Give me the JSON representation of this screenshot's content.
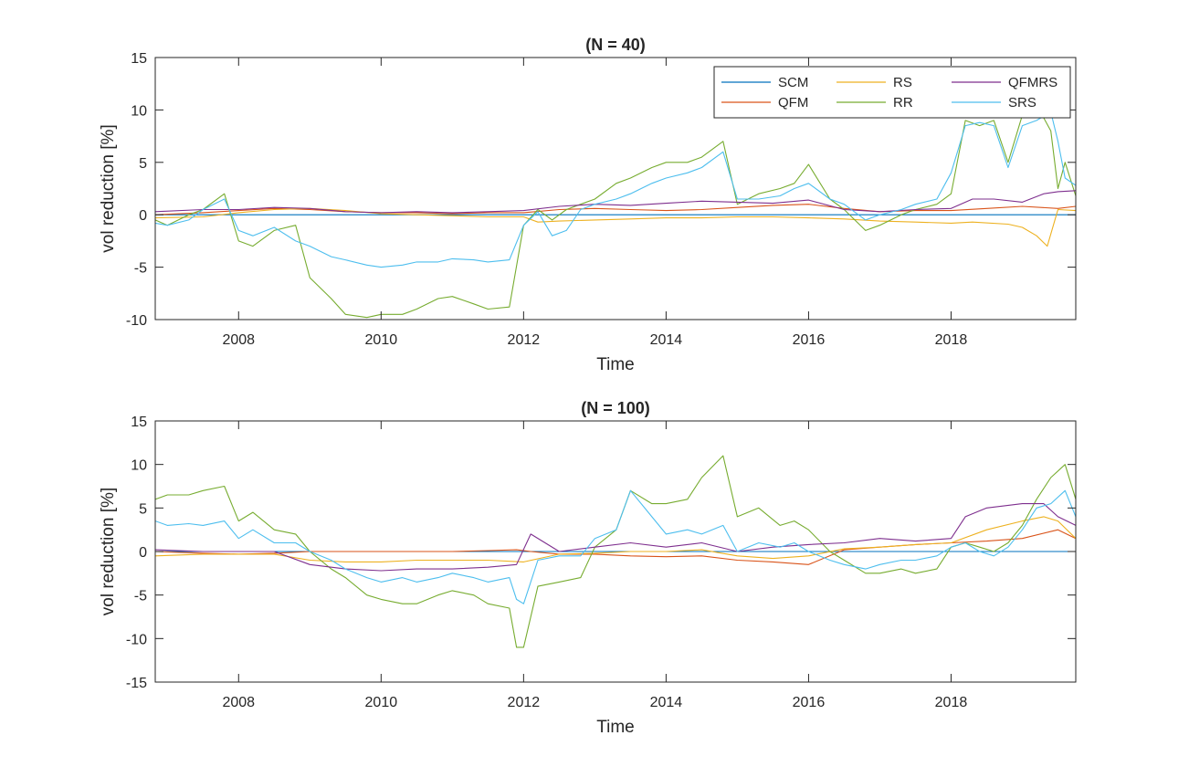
{
  "chart_data": [
    {
      "type": "line",
      "title": "(N = 40)",
      "xlabel": "Time",
      "ylabel": "vol reduction [%]",
      "xlim": [
        2006.83,
        2019.75
      ],
      "ylim": [
        -10,
        15
      ],
      "xticks": [
        2008,
        2010,
        2012,
        2014,
        2016,
        2018
      ],
      "xtick_labels": [
        "2008",
        "2010",
        "2012",
        "2014",
        "2016",
        "2018"
      ],
      "yticks": [
        -10,
        -5,
        0,
        5,
        10,
        15
      ],
      "ytick_labels": [
        "-10",
        "-5",
        "0",
        "5",
        "10",
        "15"
      ],
      "legend": "top-right",
      "grid": false,
      "series": [
        {
          "name": "SCM",
          "color": "#0072BD",
          "x": [
            2006.83,
            2019.75
          ],
          "y": [
            0,
            0
          ]
        },
        {
          "name": "QFM",
          "color": "#D95319",
          "x": [
            2006.83,
            2007.5,
            2008,
            2008.5,
            2009,
            2009.5,
            2010,
            2010.5,
            2011,
            2011.5,
            2012,
            2012.5,
            2013,
            2013.5,
            2014,
            2014.5,
            2015,
            2015.5,
            2016,
            2016.5,
            2017,
            2017.5,
            2018,
            2018.5,
            2019,
            2019.5,
            2019.75
          ],
          "y": [
            0.0,
            0.2,
            0.4,
            0.6,
            0.5,
            0.3,
            0.2,
            0.2,
            0.1,
            0.2,
            0.2,
            0.5,
            0.6,
            0.5,
            0.4,
            0.5,
            0.7,
            0.9,
            1.0,
            0.6,
            0.3,
            0.4,
            0.4,
            0.6,
            0.8,
            0.6,
            0.8
          ]
        },
        {
          "name": "RS",
          "color": "#EDB120",
          "x": [
            2006.83,
            2007.5,
            2008,
            2008.5,
            2009,
            2009.5,
            2010,
            2010.5,
            2011,
            2011.5,
            2012,
            2012.2,
            2012.5,
            2013,
            2013.5,
            2014,
            2014.5,
            2015,
            2015.5,
            2016,
            2016.5,
            2017,
            2017.5,
            2018,
            2018.3,
            2018.8,
            2019,
            2019.2,
            2019.35,
            2019.5,
            2019.75
          ],
          "y": [
            -0.3,
            -0.2,
            0.2,
            0.5,
            0.6,
            0.4,
            0.1,
            0.0,
            -0.1,
            -0.2,
            -0.2,
            -0.7,
            -0.6,
            -0.5,
            -0.4,
            -0.3,
            -0.3,
            -0.2,
            -0.2,
            -0.3,
            -0.4,
            -0.6,
            -0.7,
            -0.8,
            -0.7,
            -0.9,
            -1.2,
            -2.0,
            -3.0,
            0.5,
            0.4
          ]
        },
        {
          "name": "RR",
          "color": "#77AC30",
          "x": [
            2006.83,
            2007.0,
            2007.3,
            2007.5,
            2007.8,
            2008.0,
            2008.2,
            2008.5,
            2008.8,
            2009.0,
            2009.3,
            2009.5,
            2009.8,
            2010.0,
            2010.3,
            2010.5,
            2010.8,
            2011.0,
            2011.3,
            2011.5,
            2011.8,
            2012.0,
            2012.2,
            2012.4,
            2012.6,
            2012.8,
            2013.0,
            2013.3,
            2013.5,
            2013.8,
            2014.0,
            2014.3,
            2014.5,
            2014.8,
            2015.0,
            2015.3,
            2015.6,
            2015.8,
            2016.0,
            2016.3,
            2016.5,
            2016.8,
            2017.0,
            2017.3,
            2017.5,
            2017.8,
            2018.0,
            2018.2,
            2018.4,
            2018.6,
            2018.8,
            2019.0,
            2019.2,
            2019.4,
            2019.5,
            2019.6,
            2019.75
          ],
          "y": [
            -0.5,
            -1.0,
            0.0,
            0.5,
            2.0,
            -2.5,
            -3.0,
            -1.5,
            -1.0,
            -6.0,
            -8.0,
            -9.5,
            -9.8,
            -9.5,
            -9.5,
            -9.0,
            -8.0,
            -7.8,
            -8.5,
            -9.0,
            -8.8,
            -1.0,
            0.5,
            -0.5,
            0.5,
            1.0,
            1.5,
            3.0,
            3.5,
            4.5,
            5.0,
            5.0,
            5.5,
            7.0,
            1.0,
            2.0,
            2.5,
            3.0,
            4.8,
            1.5,
            0.5,
            -1.5,
            -1.0,
            0.0,
            0.5,
            1.0,
            2.0,
            9.0,
            8.5,
            9.0,
            5.0,
            9.5,
            10.5,
            8.0,
            2.5,
            5.0,
            1.8
          ]
        },
        {
          "name": "QFMRS",
          "color": "#7E2F8E",
          "x": [
            2006.83,
            2007.5,
            2008,
            2008.5,
            2009,
            2009.5,
            2010,
            2010.5,
            2011,
            2011.5,
            2012,
            2012.5,
            2013,
            2013.5,
            2014,
            2014.5,
            2015,
            2015.5,
            2016,
            2016.5,
            2017,
            2017.5,
            2018,
            2018.3,
            2018.6,
            2019,
            2019.3,
            2019.5,
            2019.75
          ],
          "y": [
            0.3,
            0.5,
            0.5,
            0.7,
            0.6,
            0.3,
            0.2,
            0.3,
            0.2,
            0.3,
            0.4,
            0.8,
            1.0,
            0.9,
            1.1,
            1.3,
            1.2,
            1.1,
            1.4,
            0.5,
            0.3,
            0.5,
            0.6,
            1.5,
            1.5,
            1.2,
            2.0,
            2.2,
            2.3
          ]
        },
        {
          "name": "SRS",
          "color": "#4DBEEE",
          "x": [
            2006.83,
            2007.0,
            2007.3,
            2007.5,
            2007.8,
            2008.0,
            2008.2,
            2008.5,
            2008.8,
            2009.0,
            2009.3,
            2009.5,
            2009.8,
            2010.0,
            2010.3,
            2010.5,
            2010.8,
            2011.0,
            2011.3,
            2011.5,
            2011.8,
            2012.0,
            2012.2,
            2012.4,
            2012.6,
            2012.8,
            2013.0,
            2013.3,
            2013.5,
            2013.8,
            2014.0,
            2014.3,
            2014.5,
            2014.8,
            2015.0,
            2015.3,
            2015.6,
            2015.8,
            2016.0,
            2016.3,
            2016.5,
            2016.8,
            2017.0,
            2017.3,
            2017.5,
            2017.8,
            2018.0,
            2018.2,
            2018.4,
            2018.6,
            2018.8,
            2019.0,
            2019.2,
            2019.4,
            2019.5,
            2019.6,
            2019.75
          ],
          "y": [
            -0.8,
            -1.0,
            -0.5,
            0.5,
            1.5,
            -1.5,
            -2.0,
            -1.2,
            -2.5,
            -3.0,
            -4.0,
            -4.3,
            -4.8,
            -5.0,
            -4.8,
            -4.5,
            -4.5,
            -4.2,
            -4.3,
            -4.5,
            -4.3,
            -1.0,
            0.3,
            -2.0,
            -1.5,
            0.5,
            1.0,
            1.5,
            2.0,
            3.0,
            3.5,
            4.0,
            4.5,
            6.0,
            1.5,
            1.5,
            1.8,
            2.5,
            3.0,
            1.5,
            1.0,
            -0.5,
            0.0,
            0.5,
            1.0,
            1.5,
            4.0,
            8.5,
            8.8,
            8.5,
            4.5,
            8.5,
            9.0,
            9.8,
            7.0,
            3.5,
            2.8
          ]
        }
      ]
    },
    {
      "type": "line",
      "title": "(N = 100)",
      "xlabel": "Time",
      "ylabel": "vol reduction [%]",
      "xlim": [
        2006.83,
        2019.75
      ],
      "ylim": [
        -15,
        15
      ],
      "xticks": [
        2008,
        2010,
        2012,
        2014,
        2016,
        2018
      ],
      "xtick_labels": [
        "2008",
        "2010",
        "2012",
        "2014",
        "2016",
        "2018"
      ],
      "yticks": [
        -15,
        -10,
        -5,
        0,
        5,
        10,
        15
      ],
      "ytick_labels": [
        "-15",
        "-10",
        "-5",
        "0",
        "5",
        "10",
        "15"
      ],
      "legend": "none",
      "grid": false,
      "series": [
        {
          "name": "SCM",
          "color": "#0072BD",
          "x": [
            2006.83,
            2019.75
          ],
          "y": [
            0,
            0
          ]
        },
        {
          "name": "QFM",
          "color": "#D95319",
          "x": [
            2006.83,
            2007.5,
            2008,
            2008.5,
            2009,
            2009.5,
            2010,
            2010.5,
            2011,
            2011.5,
            2011.9,
            2012.1,
            2012.5,
            2013,
            2013.5,
            2014,
            2014.5,
            2015,
            2015.5,
            2016,
            2016.5,
            2017,
            2017.5,
            2018,
            2018.5,
            2019,
            2019.5,
            2019.75
          ],
          "y": [
            0.0,
            -0.2,
            -0.3,
            -0.2,
            0.0,
            0.0,
            0.0,
            0.0,
            0.0,
            0.1,
            0.2,
            0.0,
            -0.3,
            -0.3,
            -0.5,
            -0.6,
            -0.5,
            -1.0,
            -1.2,
            -1.5,
            0.2,
            0.5,
            0.8,
            1.0,
            1.2,
            1.5,
            2.5,
            1.5
          ]
        },
        {
          "name": "RS",
          "color": "#EDB120",
          "x": [
            2006.83,
            2007.5,
            2008,
            2008.5,
            2009,
            2009.5,
            2010,
            2010.5,
            2011,
            2011.5,
            2012,
            2012.5,
            2013,
            2013.5,
            2014,
            2014.5,
            2015,
            2015.5,
            2016,
            2016.5,
            2017,
            2017.5,
            2018,
            2018.5,
            2019,
            2019.3,
            2019.5,
            2019.75
          ],
          "y": [
            -0.5,
            -0.3,
            -0.3,
            -0.3,
            -1.0,
            -1.2,
            -1.2,
            -1.0,
            -1.0,
            -1.0,
            -1.2,
            -0.3,
            -0.2,
            0.0,
            0.0,
            0.2,
            -0.5,
            -0.8,
            -0.5,
            0.3,
            0.5,
            0.8,
            1.0,
            2.5,
            3.5,
            4.0,
            3.5,
            1.5
          ]
        },
        {
          "name": "RR",
          "color": "#77AC30",
          "x": [
            2006.83,
            2007.0,
            2007.3,
            2007.5,
            2007.8,
            2008.0,
            2008.2,
            2008.5,
            2008.8,
            2009.0,
            2009.3,
            2009.5,
            2009.8,
            2010.0,
            2010.3,
            2010.5,
            2010.8,
            2011.0,
            2011.3,
            2011.5,
            2011.8,
            2011.9,
            2012.0,
            2012.2,
            2012.5,
            2012.8,
            2013.0,
            2013.3,
            2013.5,
            2013.8,
            2014.0,
            2014.3,
            2014.5,
            2014.8,
            2015.0,
            2015.3,
            2015.6,
            2015.8,
            2016.0,
            2016.3,
            2016.5,
            2016.8,
            2017.0,
            2017.3,
            2017.5,
            2017.8,
            2018.0,
            2018.2,
            2018.4,
            2018.6,
            2018.8,
            2019.0,
            2019.2,
            2019.4,
            2019.6,
            2019.75
          ],
          "y": [
            6.0,
            6.5,
            6.5,
            7.0,
            7.5,
            3.5,
            4.5,
            2.5,
            2.0,
            0.0,
            -2.0,
            -3.0,
            -5.0,
            -5.5,
            -6.0,
            -6.0,
            -5.0,
            -4.5,
            -5.0,
            -6.0,
            -6.5,
            -11.0,
            -11.0,
            -4.0,
            -3.5,
            -3.0,
            0.5,
            2.5,
            7.0,
            5.5,
            5.5,
            6.0,
            8.5,
            11.0,
            4.0,
            5.0,
            3.0,
            3.5,
            2.5,
            0.0,
            -1.0,
            -2.5,
            -2.5,
            -2.0,
            -2.5,
            -2.0,
            0.5,
            1.0,
            0.5,
            0.0,
            1.0,
            3.0,
            6.0,
            8.5,
            10.0,
            6.0
          ]
        },
        {
          "name": "QFMRS",
          "color": "#7E2F8E",
          "x": [
            2006.83,
            2007.5,
            2008,
            2008.5,
            2009,
            2009.5,
            2010,
            2010.5,
            2011,
            2011.5,
            2011.9,
            2012.1,
            2012.5,
            2013,
            2013.5,
            2014,
            2014.5,
            2015,
            2015.5,
            2016,
            2016.5,
            2017,
            2017.5,
            2018,
            2018.2,
            2018.5,
            2019,
            2019.3,
            2019.5,
            2019.75
          ],
          "y": [
            0.2,
            0.0,
            0.0,
            0.0,
            -1.5,
            -2.0,
            -2.2,
            -2.0,
            -2.0,
            -1.8,
            -1.5,
            2.0,
            0.0,
            0.5,
            1.0,
            0.5,
            1.0,
            0.0,
            0.5,
            0.8,
            1.0,
            1.5,
            1.2,
            1.5,
            4.0,
            5.0,
            5.5,
            5.5,
            4.0,
            3.0
          ]
        },
        {
          "name": "SRS",
          "color": "#4DBEEE",
          "x": [
            2006.83,
            2007.0,
            2007.3,
            2007.5,
            2007.8,
            2008.0,
            2008.2,
            2008.5,
            2008.8,
            2009.0,
            2009.3,
            2009.5,
            2009.8,
            2010.0,
            2010.3,
            2010.5,
            2010.8,
            2011.0,
            2011.3,
            2011.5,
            2011.8,
            2011.9,
            2012.0,
            2012.2,
            2012.5,
            2012.8,
            2013.0,
            2013.3,
            2013.5,
            2013.8,
            2014.0,
            2014.3,
            2014.5,
            2014.8,
            2015.0,
            2015.3,
            2015.6,
            2015.8,
            2016.0,
            2016.3,
            2016.5,
            2016.8,
            2017.0,
            2017.3,
            2017.5,
            2017.8,
            2018.0,
            2018.2,
            2018.4,
            2018.6,
            2018.8,
            2019.0,
            2019.2,
            2019.4,
            2019.6,
            2019.75
          ],
          "y": [
            3.5,
            3.0,
            3.2,
            3.0,
            3.5,
            1.5,
            2.5,
            1.0,
            1.0,
            0.0,
            -1.0,
            -2.0,
            -3.0,
            -3.5,
            -3.0,
            -3.5,
            -3.0,
            -2.5,
            -3.0,
            -3.5,
            -3.0,
            -5.5,
            -6.0,
            -1.0,
            -0.5,
            -0.5,
            1.5,
            2.5,
            7.0,
            4.0,
            2.0,
            2.5,
            2.0,
            3.0,
            0.0,
            1.0,
            0.5,
            1.0,
            0.0,
            -1.0,
            -1.5,
            -2.0,
            -1.5,
            -1.0,
            -1.0,
            -0.5,
            0.5,
            1.0,
            0.0,
            -0.5,
            0.5,
            2.5,
            5.0,
            5.5,
            7.0,
            4.0
          ]
        }
      ]
    }
  ]
}
